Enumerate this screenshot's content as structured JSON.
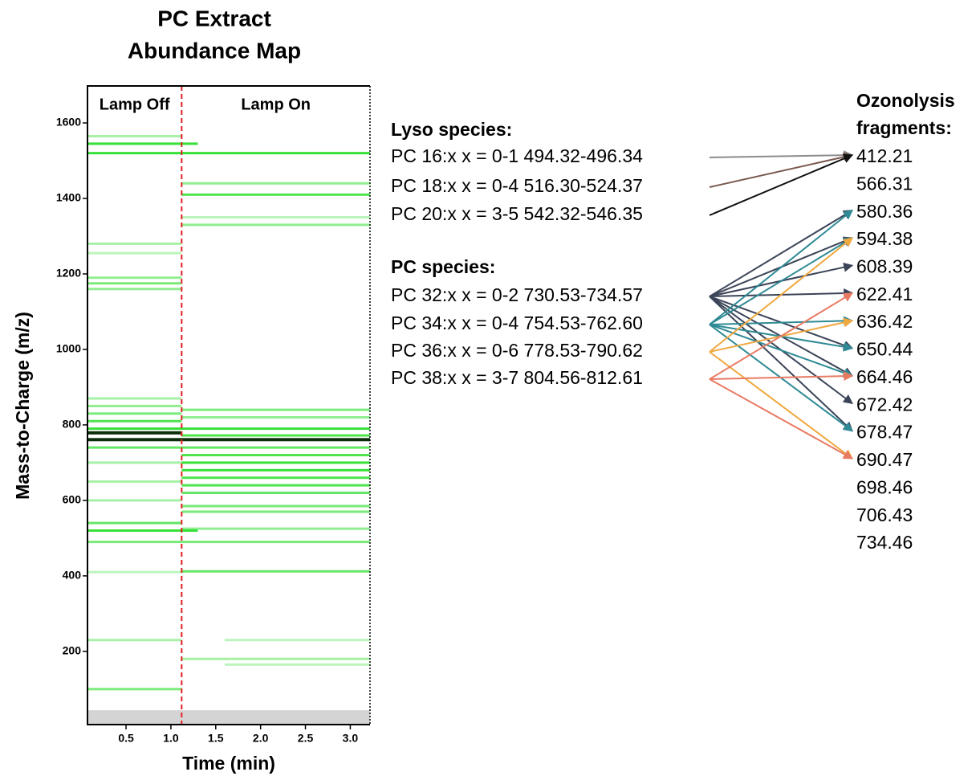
{
  "chart_data": {
    "type": "band-map",
    "title": [
      "PC Extract",
      "Abundance Map"
    ],
    "xlabel": "Time (min)",
    "ylabel": "Mass-to-Charge (m/z)",
    "xlim": [
      0.07,
      3.22
    ],
    "ylim": [
      6,
      1698
    ],
    "xticks": [
      0.5,
      {
        "value": 1,
        "label": "1.0"
      },
      1.5,
      {
        "value": 2,
        "label": "2.0"
      },
      2.5,
      {
        "value": 3,
        "label": "3.0"
      }
    ],
    "yticks": [
      200,
      400,
      600,
      800,
      1000,
      1200,
      1400,
      1600
    ],
    "lamp_switch_time": 1.12,
    "lamp_labels": [
      "Lamp Off",
      "Lamp On"
    ],
    "blank_region": [
      6,
      44
    ],
    "band_color": "#22dd22",
    "bands": [
      {
        "mz": 1565,
        "t0": 0.07,
        "t1": 1.12,
        "level": 0.4
      },
      {
        "mz": 1545,
        "t0": 0.07,
        "t1": 1.3,
        "level": 0.9
      },
      {
        "mz": 1520,
        "t0": 0.07,
        "t1": 3.22,
        "level": 0.9
      },
      {
        "mz": 1280,
        "t0": 0.07,
        "t1": 1.12,
        "level": 0.4
      },
      {
        "mz": 1255,
        "t0": 0.07,
        "t1": 1.12,
        "level": 0.3
      },
      {
        "mz": 1190,
        "t0": 0.07,
        "t1": 1.12,
        "level": 0.5
      },
      {
        "mz": 1175,
        "t0": 0.07,
        "t1": 1.12,
        "level": 0.6
      },
      {
        "mz": 1160,
        "t0": 0.07,
        "t1": 1.12,
        "level": 0.5
      },
      {
        "mz": 870,
        "t0": 0.07,
        "t1": 1.12,
        "level": 0.4
      },
      {
        "mz": 850,
        "t0": 0.07,
        "t1": 1.12,
        "level": 0.5
      },
      {
        "mz": 830,
        "t0": 0.07,
        "t1": 1.12,
        "level": 0.6
      },
      {
        "mz": 810,
        "t0": 0.07,
        "t1": 1.12,
        "level": 0.8
      },
      {
        "mz": 790,
        "t0": 0.07,
        "t1": 3.22,
        "level": 0.9
      },
      {
        "mz": 780,
        "t0": 0.07,
        "t1": 1.12,
        "level": 1
      },
      {
        "mz": 762,
        "t0": 0.07,
        "t1": 3.22,
        "level": 1
      },
      {
        "mz": 740,
        "t0": 0.07,
        "t1": 3.22,
        "level": 0.7
      },
      {
        "mz": 700,
        "t0": 0.07,
        "t1": 1.12,
        "level": 0.4
      },
      {
        "mz": 650,
        "t0": 0.07,
        "t1": 1.12,
        "level": 0.4
      },
      {
        "mz": 600,
        "t0": 0.07,
        "t1": 1.12,
        "level": 0.4
      },
      {
        "mz": 540,
        "t0": 0.07,
        "t1": 1.12,
        "level": 0.7
      },
      {
        "mz": 520,
        "t0": 0.07,
        "t1": 1.3,
        "level": 0.9
      },
      {
        "mz": 410,
        "t0": 0.07,
        "t1": 1.12,
        "level": 0.3
      },
      {
        "mz": 230,
        "t0": 0.07,
        "t1": 1.12,
        "level": 0.4
      },
      {
        "mz": 100,
        "t0": 0.07,
        "t1": 1.12,
        "level": 0.6
      },
      {
        "mz": 1440,
        "t0": 1.12,
        "t1": 3.22,
        "level": 0.5
      },
      {
        "mz": 1410,
        "t0": 1.12,
        "t1": 3.22,
        "level": 0.8
      },
      {
        "mz": 1350,
        "t0": 1.12,
        "t1": 3.22,
        "level": 0.3
      },
      {
        "mz": 1330,
        "t0": 1.12,
        "t1": 3.22,
        "level": 0.5
      },
      {
        "mz": 840,
        "t0": 1.12,
        "t1": 3.22,
        "level": 0.6
      },
      {
        "mz": 820,
        "t0": 1.12,
        "t1": 3.22,
        "level": 0.5
      },
      {
        "mz": 772,
        "t0": 1.12,
        "t1": 3.22,
        "level": 0.8
      },
      {
        "mz": 720,
        "t0": 1.12,
        "t1": 3.22,
        "level": 0.8
      },
      {
        "mz": 700,
        "t0": 1.12,
        "t1": 3.22,
        "level": 0.9
      },
      {
        "mz": 680,
        "t0": 1.12,
        "t1": 3.22,
        "level": 0.9
      },
      {
        "mz": 660,
        "t0": 1.12,
        "t1": 3.22,
        "level": 0.8
      },
      {
        "mz": 640,
        "t0": 1.12,
        "t1": 3.22,
        "level": 0.8
      },
      {
        "mz": 620,
        "t0": 1.12,
        "t1": 3.22,
        "level": 0.7
      },
      {
        "mz": 585,
        "t0": 1.12,
        "t1": 3.22,
        "level": 0.6
      },
      {
        "mz": 570,
        "t0": 1.12,
        "t1": 3.22,
        "level": 0.6
      },
      {
        "mz": 525,
        "t0": 1.12,
        "t1": 3.22,
        "level": 0.5
      },
      {
        "mz": 490,
        "t0": 0.07,
        "t1": 3.22,
        "level": 0.6
      },
      {
        "mz": 412,
        "t0": 1.12,
        "t1": 3.22,
        "level": 0.7
      },
      {
        "mz": 230,
        "t0": 1.6,
        "t1": 3.22,
        "level": 0.3
      },
      {
        "mz": 180,
        "t0": 1.12,
        "t1": 3.22,
        "level": 0.4
      },
      {
        "mz": 165,
        "t0": 1.6,
        "t1": 3.22,
        "level": 0.3
      }
    ]
  },
  "lyso_heading": "Lyso species:",
  "lyso_species": [
    {
      "label": "PC 16:x  x = 0-1 494.32-496.34",
      "color": "#8c8c8c",
      "targets": [
        0
      ]
    },
    {
      "label": "PC 18:x  x = 0-4 516.30-524.37",
      "color": "#7a5a50",
      "targets": [
        0
      ]
    },
    {
      "label": "PC 20:x  x = 3-5 542.32-546.35",
      "color": "#111111",
      "targets": [
        0
      ]
    }
  ],
  "pc_heading": "PC species:",
  "pc_species": [
    {
      "label": "PC 32:x  x = 0-2 730.53-734.57",
      "color": "#3b4458",
      "targets": [
        2,
        3,
        4,
        5,
        7,
        8,
        9,
        10
      ]
    },
    {
      "label": "PC 34:x  x = 0-4 754.53-762.60",
      "color": "#2e8a94",
      "targets": [
        2,
        3,
        6,
        7,
        8,
        10
      ]
    },
    {
      "label": "PC 36:x  x = 0-6 778.53-790.62",
      "color": "#f0a840",
      "targets": [
        3,
        6,
        11
      ]
    },
    {
      "label": "PC 38:x  x = 3-7 804.56-812.61",
      "color": "#e87a62",
      "targets": [
        5,
        8,
        11
      ]
    }
  ],
  "fragments_heading": [
    "Ozonolysis",
    "fragments:"
  ],
  "fragments": [
    "412.21",
    "566.31",
    "580.36",
    "594.38",
    "608.39",
    "622.41",
    "636.42",
    "650.44",
    "664.46",
    "672.42",
    "678.47",
    "690.47",
    "698.46",
    "706.43",
    "734.46"
  ]
}
